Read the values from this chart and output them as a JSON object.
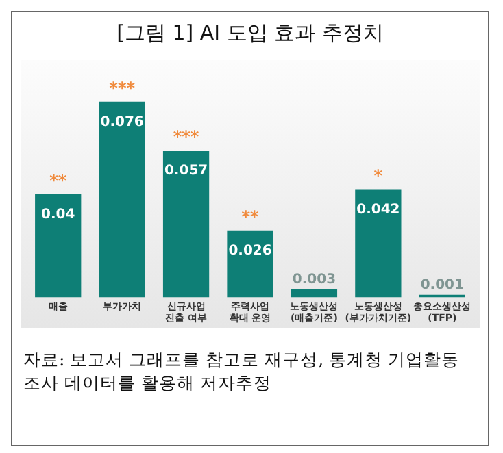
{
  "chart_data": {
    "type": "bar",
    "title": "[그림 1] AI 도입 효과 추정치",
    "categories": [
      "매출",
      "부가가치",
      "신규사업\n진출 여부",
      "주력사업\n확대 운영",
      "노동생산성\n(매출기준)",
      "노동생산성\n(부가가치기준)",
      "총요소생산성\n(TFP)"
    ],
    "values": [
      0.04,
      0.076,
      0.057,
      0.026,
      0.003,
      0.042,
      0.001
    ],
    "color": "#0e7f76",
    "data_labels": true,
    "grid": false,
    "legend": false,
    "tick_labels": "x",
    "annotations": [
      {
        "text": "**",
        "x": "매출",
        "y": 0.04
      },
      {
        "text": "***",
        "x": "부가가치",
        "y": 0.076
      },
      {
        "text": "***",
        "x": "신규사업\n진출 여부",
        "y": 0.057
      },
      {
        "text": "**",
        "x": "주력사업\n확대 운영",
        "y": 0.026
      },
      {
        "text": "*",
        "x": "노동생산성\n(부가가치기준)",
        "y": 0.042
      },
      "자료: 보고서 그래프를 참고로 재구성, 통계청 기업활동 조사 데이터를 활용해 저자추정"
    ]
  }
}
